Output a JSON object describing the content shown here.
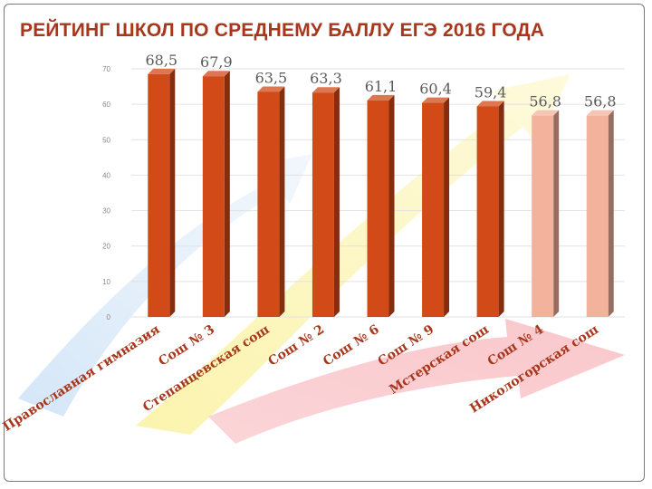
{
  "slide": {
    "title": "РЕЙТИНГ ШКОЛ ПО СРЕДНЕМУ БАЛЛУ ЕГЭ 2016 ГОДА"
  },
  "chart_data": {
    "type": "bar",
    "categories": [
      "Православная гимназия",
      "Сош № 3",
      "Степанцевская сош",
      "Сош № 2",
      "Сош № 6",
      "Сош № 9",
      "Мстерская сош",
      "Сош № 4",
      "Никологорская сош"
    ],
    "values": [
      68.5,
      67.9,
      63.5,
      63.3,
      61.1,
      60.4,
      59.4,
      56.8,
      56.8
    ],
    "value_labels": [
      "68,5",
      "67,9",
      "63,5",
      "63,3",
      "61,1",
      "60,4",
      "59,4",
      "56,8",
      "56,8"
    ],
    "bar_colors": [
      "#d24a18",
      "#d24a18",
      "#d24a18",
      "#d24a18",
      "#d24a18",
      "#d24a18",
      "#d24a18",
      "#f2b29c",
      "#f2b29c"
    ],
    "yticks": [
      0,
      10,
      20,
      30,
      40,
      50,
      60,
      70
    ],
    "ylim": [
      0,
      70
    ],
    "grid": true,
    "legend": "none",
    "title": "РЕЙТИНГ ШКОЛ ПО СРЕДНЕМУ БАЛЛУ ЕГЭ 2016 ГОДА",
    "xlabel": "",
    "ylabel": ""
  }
}
